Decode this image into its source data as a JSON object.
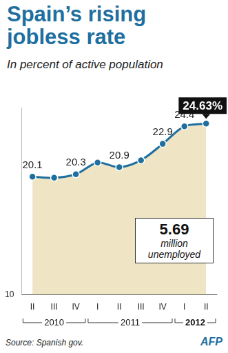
{
  "chart_data": {
    "type": "line",
    "title": "Spain’s rising jobless rate",
    "subtitle": "In percent of active population",
    "categories": [
      "II",
      "III",
      "IV",
      "I",
      "II",
      "III",
      "IV",
      "I",
      "II"
    ],
    "groups": [
      {
        "label": "2010",
        "count": 3
      },
      {
        "label": "2011",
        "count": 4
      },
      {
        "label": "2012",
        "count": 2
      }
    ],
    "values": [
      20.1,
      20.0,
      20.3,
      21.3,
      20.9,
      21.5,
      22.9,
      24.4,
      24.63
    ],
    "value_labels": [
      "20.1",
      null,
      "20.3",
      null,
      "20.9",
      null,
      "22.9",
      "24.4",
      "24.63%"
    ],
    "data_labels": true,
    "color": "#1e6f9f",
    "marker": "circle",
    "ylim": [
      10,
      26
    ],
    "yticks": [
      10
    ],
    "grid": true,
    "annotation": [
      "5.69",
      "million",
      "unemployed"
    ],
    "source": "Source: Spanish gov.",
    "credit": "AFP"
  }
}
